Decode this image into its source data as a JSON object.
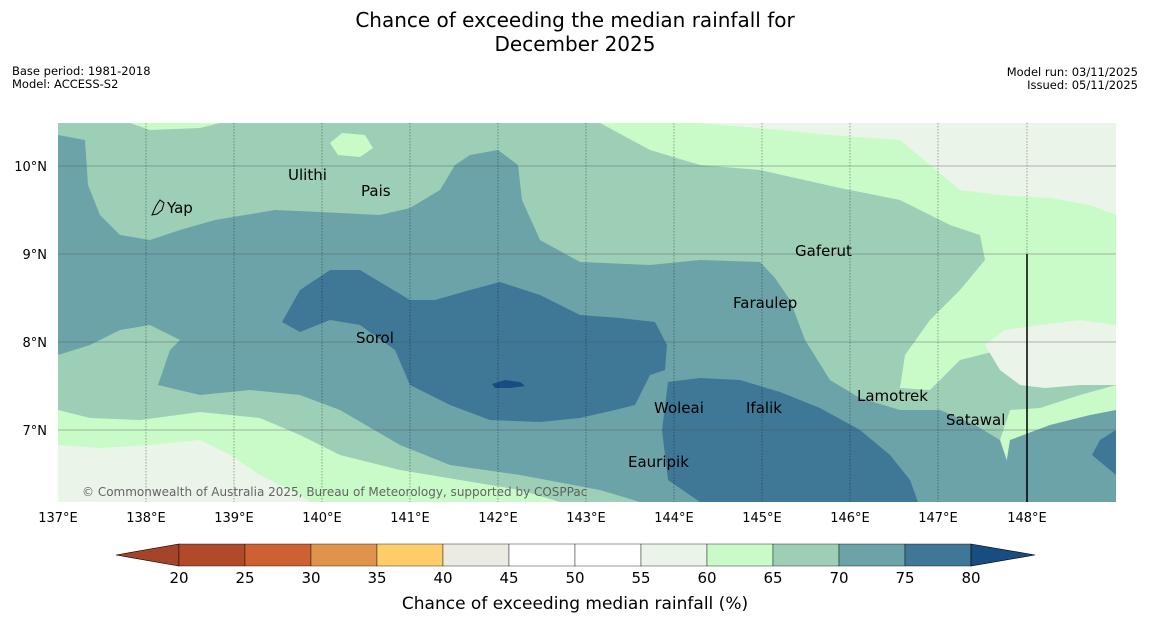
{
  "title": {
    "line1": "Chance of exceeding the median rainfall for",
    "line2": "December 2025"
  },
  "meta": {
    "base_period": "Base period: 1981-2018",
    "model": "Model: ACCESS-S2",
    "model_run": "Model run: 03/11/2025",
    "issued": "Issued: 05/11/2025"
  },
  "map": {
    "lon_ticks": [
      "137°E",
      "138°E",
      "139°E",
      "140°E",
      "141°E",
      "142°E",
      "143°E",
      "144°E",
      "145°E",
      "146°E",
      "147°E",
      "148°E"
    ],
    "lat_ticks": [
      "10°N",
      "9°N",
      "8°N",
      "7°N"
    ],
    "places": [
      "Ulithi",
      "Pais",
      "Yap",
      "Gaferut",
      "Faraulep",
      "Sorol",
      "Lamotrek",
      "Woleai",
      "Ifalik",
      "Satawal",
      "Eauripik"
    ],
    "attribution": "© Commonwealth of Australia 2025, Bureau of Meteorology, supported by COSPPac"
  },
  "colorbar": {
    "ticks": [
      "20",
      "25",
      "30",
      "35",
      "40",
      "45",
      "50",
      "55",
      "60",
      "65",
      "70",
      "75",
      "80"
    ],
    "colors": [
      "#b04a2a",
      "#cd6133",
      "#e0934a",
      "#fecd6a",
      "#ebebe4",
      "#ffffff",
      "#ffffff",
      "#ebf4e9",
      "#c9fbc9",
      "#9ccfb6",
      "#6ca3a8",
      "#3f7897"
    ],
    "under_color": "#a6442a",
    "over_color": "#174d80",
    "label": "Chance of exceeding median rainfall (%)"
  },
  "colors": {
    "band_55_60": "#ebf4e9",
    "band_60_65": "#c9fbc9",
    "band_65_70": "#9ccfb6",
    "band_70_75": "#6ca3a8",
    "band_75_80": "#3f7897",
    "band_80_plus": "#174d80"
  }
}
